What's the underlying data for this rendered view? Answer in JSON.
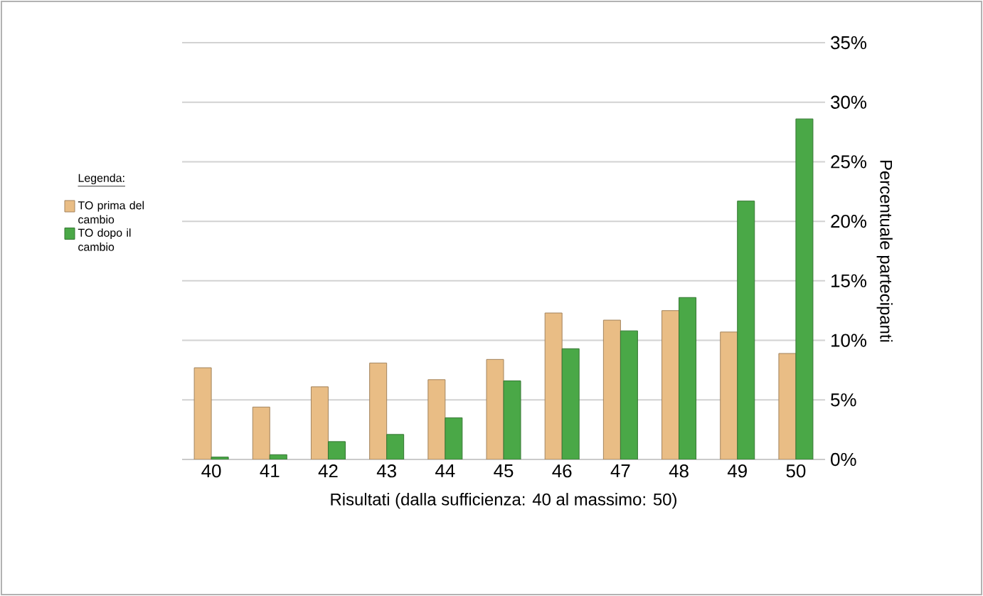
{
  "chart_data": {
    "type": "bar",
    "xlabel": "Risultati (dalla sufficienza: 40 al massimo: 50)",
    "ylabel": "Percentuale partecipanti",
    "legend_title": "Legenda:",
    "categories": [
      "40",
      "41",
      "42",
      "43",
      "44",
      "45",
      "46",
      "47",
      "48",
      "49",
      "50"
    ],
    "series": [
      {
        "name": "TO prima del cambio",
        "color": "#e9bd85",
        "values": [
          7.7,
          4.4,
          6.1,
          8.1,
          6.7,
          8.4,
          12.3,
          11.7,
          12.5,
          10.7,
          8.9
        ]
      },
      {
        "name": "TO dopo il cambio",
        "color": "#4aa847",
        "values": [
          0.2,
          0.4,
          1.5,
          2.1,
          3.5,
          6.6,
          9.3,
          10.8,
          13.6,
          21.7,
          28.6
        ]
      }
    ],
    "ylim": [
      0,
      35
    ],
    "yticks": [
      {
        "value": 0,
        "label": "0%"
      },
      {
        "value": 5,
        "label": "5%"
      },
      {
        "value": 10,
        "label": "10%"
      },
      {
        "value": 15,
        "label": "15%"
      },
      {
        "value": 20,
        "label": "20%"
      },
      {
        "value": 25,
        "label": "25%"
      },
      {
        "value": 30,
        "label": "30%"
      },
      {
        "value": 35,
        "label": "35%"
      }
    ],
    "grid": "y",
    "legend": "left"
  }
}
